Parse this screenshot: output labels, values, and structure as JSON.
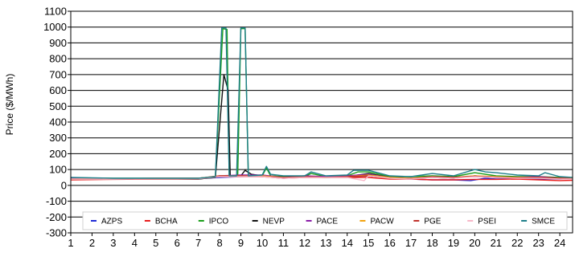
{
  "chart_data": {
    "type": "line",
    "ylabel": "Price ($/MWh)",
    "xlabel": "",
    "title": "",
    "ylim": [
      -300,
      1100
    ],
    "xlim": [
      1,
      24.6
    ],
    "yticks": [
      1100,
      1000,
      900,
      800,
      700,
      600,
      500,
      400,
      300,
      200,
      100,
      0,
      -100,
      -200,
      -300
    ],
    "xticks": [
      1,
      2,
      3,
      4,
      5,
      6,
      7,
      8,
      9,
      10,
      11,
      12,
      13,
      14,
      15,
      16,
      17,
      18,
      19,
      20,
      21,
      22,
      23,
      24
    ],
    "grid": "horizontal",
    "legend_position": "bottom-inside",
    "series": [
      {
        "name": "AZPS",
        "color": "#1f2bd6",
        "points": [
          [
            1,
            40
          ],
          [
            3,
            40
          ],
          [
            5,
            42
          ],
          [
            7,
            42
          ],
          [
            8,
            50
          ],
          [
            9,
            55
          ],
          [
            10,
            60
          ],
          [
            11,
            45
          ],
          [
            12,
            55
          ],
          [
            14,
            55
          ],
          [
            15,
            60
          ],
          [
            16,
            45
          ],
          [
            17,
            40
          ],
          [
            18,
            35
          ],
          [
            19,
            35
          ],
          [
            19.8,
            30
          ],
          [
            20.5,
            45
          ],
          [
            21,
            40
          ],
          [
            22,
            42
          ],
          [
            23,
            40
          ],
          [
            24,
            40
          ],
          [
            24.6,
            45
          ]
        ]
      },
      {
        "name": "BCHA",
        "color": "#e81c1c",
        "points": [
          [
            1,
            35
          ],
          [
            3,
            38
          ],
          [
            5,
            40
          ],
          [
            7,
            40
          ],
          [
            8,
            55
          ],
          [
            9,
            55
          ],
          [
            10,
            55
          ],
          [
            11,
            45
          ],
          [
            12,
            50
          ],
          [
            14,
            50
          ],
          [
            15,
            50
          ],
          [
            16,
            40
          ],
          [
            17,
            40
          ],
          [
            18,
            35
          ],
          [
            19,
            35
          ],
          [
            20,
            38
          ],
          [
            21,
            38
          ],
          [
            22,
            40
          ],
          [
            23,
            35
          ],
          [
            24,
            30
          ],
          [
            24.6,
            32
          ]
        ]
      },
      {
        "name": "IPCO",
        "color": "#1a9e1a",
        "points": [
          [
            1,
            48
          ],
          [
            3,
            45
          ],
          [
            5,
            45
          ],
          [
            7,
            45
          ],
          [
            7.8,
            55
          ],
          [
            8.15,
            990
          ],
          [
            8.35,
            985
          ],
          [
            8.45,
            60
          ],
          [
            8.85,
            60
          ],
          [
            9.0,
            990
          ],
          [
            9.2,
            990
          ],
          [
            9.35,
            60
          ],
          [
            10,
            60
          ],
          [
            10.2,
            110
          ],
          [
            10.4,
            60
          ],
          [
            11,
            55
          ],
          [
            12,
            55
          ],
          [
            12.3,
            75
          ],
          [
            13,
            55
          ],
          [
            14,
            60
          ],
          [
            14.5,
            85
          ],
          [
            15,
            85
          ],
          [
            16,
            55
          ],
          [
            17,
            55
          ],
          [
            18,
            60
          ],
          [
            19,
            55
          ],
          [
            20,
            80
          ],
          [
            21,
            60
          ],
          [
            22,
            55
          ],
          [
            23,
            55
          ],
          [
            24,
            50
          ],
          [
            24.6,
            48
          ]
        ]
      },
      {
        "name": "NEVP",
        "color": "#111111",
        "points": [
          [
            1,
            45
          ],
          [
            3,
            40
          ],
          [
            5,
            42
          ],
          [
            7,
            40
          ],
          [
            7.8,
            50
          ],
          [
            8.2,
            700
          ],
          [
            8.4,
            600
          ],
          [
            8.5,
            55
          ],
          [
            9,
            60
          ],
          [
            9.2,
            95
          ],
          [
            9.5,
            70
          ],
          [
            10,
            60
          ],
          [
            11,
            50
          ],
          [
            12,
            55
          ],
          [
            13,
            50
          ],
          [
            14,
            55
          ],
          [
            15,
            75
          ],
          [
            16,
            50
          ],
          [
            17,
            45
          ],
          [
            18,
            50
          ],
          [
            19,
            45
          ],
          [
            20,
            60
          ],
          [
            21,
            50
          ],
          [
            22,
            48
          ],
          [
            23,
            50
          ],
          [
            24,
            45
          ],
          [
            24.6,
            45
          ]
        ]
      },
      {
        "name": "PACE",
        "color": "#8a1ba8",
        "points": [
          [
            1,
            45
          ],
          [
            3,
            42
          ],
          [
            5,
            45
          ],
          [
            7,
            45
          ],
          [
            8,
            60
          ],
          [
            9,
            65
          ],
          [
            10,
            65
          ],
          [
            11,
            50
          ],
          [
            12,
            60
          ],
          [
            13,
            55
          ],
          [
            14,
            60
          ],
          [
            15,
            70
          ],
          [
            16,
            50
          ],
          [
            17,
            45
          ],
          [
            18,
            50
          ],
          [
            19,
            50
          ],
          [
            20,
            55
          ],
          [
            21,
            50
          ],
          [
            22,
            50
          ],
          [
            23,
            55
          ],
          [
            24,
            45
          ],
          [
            24.6,
            45
          ]
        ]
      },
      {
        "name": "PACW",
        "color": "#f2a30f",
        "points": [
          [
            1,
            40
          ],
          [
            3,
            42
          ],
          [
            5,
            45
          ],
          [
            7,
            45
          ],
          [
            8,
            60
          ],
          [
            9,
            60
          ],
          [
            10,
            60
          ],
          [
            11,
            50
          ],
          [
            12,
            55
          ],
          [
            13,
            50
          ],
          [
            14,
            55
          ],
          [
            15,
            65
          ],
          [
            16,
            50
          ],
          [
            17,
            45
          ],
          [
            18,
            55
          ],
          [
            19,
            50
          ],
          [
            20,
            60
          ],
          [
            21,
            55
          ],
          [
            22,
            50
          ],
          [
            23,
            50
          ],
          [
            24,
            45
          ],
          [
            24.6,
            45
          ]
        ]
      },
      {
        "name": "PGE",
        "color": "#c0322b",
        "points": [
          [
            1,
            40
          ],
          [
            3,
            40
          ],
          [
            5,
            42
          ],
          [
            7,
            42
          ],
          [
            8,
            60
          ],
          [
            9,
            60
          ],
          [
            10,
            55
          ],
          [
            11,
            50
          ],
          [
            12,
            55
          ],
          [
            13,
            50
          ],
          [
            14,
            55
          ],
          [
            15,
            60
          ],
          [
            16,
            45
          ],
          [
            17,
            42
          ],
          [
            18,
            55
          ],
          [
            19,
            50
          ],
          [
            20,
            58
          ],
          [
            21,
            52
          ],
          [
            22,
            48
          ],
          [
            23,
            50
          ],
          [
            24,
            45
          ],
          [
            24.6,
            42
          ]
        ]
      },
      {
        "name": "PSEI",
        "color": "#f7b7c8",
        "points": [
          [
            1,
            40
          ],
          [
            3,
            40
          ],
          [
            5,
            42
          ],
          [
            7,
            42
          ],
          [
            8,
            55
          ],
          [
            9,
            55
          ],
          [
            10,
            55
          ],
          [
            11,
            45
          ],
          [
            12,
            50
          ],
          [
            13,
            50
          ],
          [
            14,
            50
          ],
          [
            14.8,
            30
          ],
          [
            15,
            60
          ],
          [
            16,
            45
          ],
          [
            17,
            40
          ],
          [
            18,
            50
          ],
          [
            19,
            45
          ],
          [
            20,
            55
          ],
          [
            21,
            50
          ],
          [
            22,
            45
          ],
          [
            23,
            45
          ],
          [
            24,
            40
          ],
          [
            24.6,
            40
          ]
        ]
      },
      {
        "name": "SMCE",
        "color": "#1f7f8a",
        "points": [
          [
            1,
            50
          ],
          [
            3,
            45
          ],
          [
            5,
            45
          ],
          [
            7,
            45
          ],
          [
            7.8,
            55
          ],
          [
            8.1,
            995
          ],
          [
            8.3,
            995
          ],
          [
            8.45,
            60
          ],
          [
            8.8,
            60
          ],
          [
            9.0,
            995
          ],
          [
            9.2,
            995
          ],
          [
            9.35,
            60
          ],
          [
            10,
            65
          ],
          [
            10.2,
            120
          ],
          [
            10.4,
            70
          ],
          [
            11,
            60
          ],
          [
            12,
            60
          ],
          [
            12.3,
            85
          ],
          [
            13,
            60
          ],
          [
            14,
            65
          ],
          [
            14.3,
            95
          ],
          [
            15,
            95
          ],
          [
            16,
            60
          ],
          [
            17,
            55
          ],
          [
            18,
            75
          ],
          [
            19,
            60
          ],
          [
            20,
            100
          ],
          [
            20.5,
            85
          ],
          [
            21,
            80
          ],
          [
            22,
            65
          ],
          [
            23,
            60
          ],
          [
            23.3,
            80
          ],
          [
            24,
            55
          ],
          [
            24.6,
            50
          ]
        ]
      }
    ]
  }
}
